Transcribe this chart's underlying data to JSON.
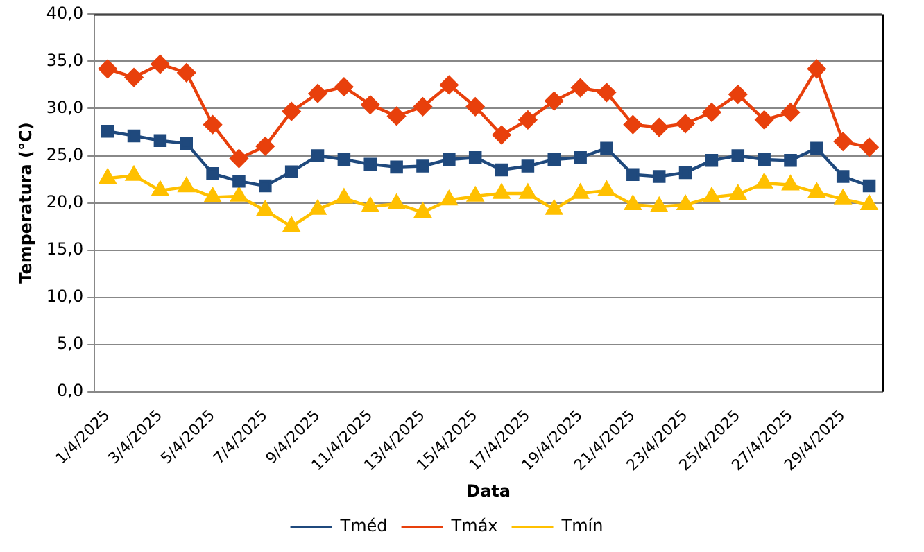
{
  "chart_data": {
    "type": "line",
    "xlabel": "Data",
    "ylabel": "Temperatura (°C)",
    "categories": [
      "1/4/2025",
      null,
      "3/4/2025",
      null,
      "5/4/2025",
      null,
      "7/4/2025",
      null,
      "9/4/2025",
      null,
      "11/4/2025",
      null,
      "13/4/2025",
      null,
      "15/4/2025",
      null,
      "17/4/2025",
      null,
      "19/4/2025",
      null,
      "21/4/2025",
      null,
      "23/4/2025",
      null,
      "25/4/2025",
      null,
      "27/4/2025",
      null,
      "29/4/2025",
      null
    ],
    "series": [
      {
        "name": "Tméd",
        "color": "#1f497d",
        "marker": "square",
        "values": [
          27.6,
          27.1,
          26.6,
          26.3,
          23.1,
          22.3,
          21.8,
          23.3,
          25.0,
          24.6,
          24.1,
          23.8,
          23.9,
          24.6,
          24.8,
          23.5,
          23.9,
          24.6,
          24.8,
          25.8,
          23.0,
          22.8,
          23.2,
          24.5,
          25.0,
          24.6,
          24.5,
          25.8,
          22.8,
          21.8
        ]
      },
      {
        "name": "Tmáx",
        "color": "#e8400c",
        "marker": "diamond",
        "values": [
          34.2,
          33.3,
          34.7,
          33.8,
          28.3,
          24.7,
          26.0,
          29.7,
          31.6,
          32.3,
          30.4,
          29.2,
          30.2,
          32.5,
          30.2,
          27.2,
          28.8,
          30.8,
          32.2,
          31.7,
          28.3,
          28.0,
          28.4,
          29.6,
          31.5,
          28.8,
          29.6,
          34.2,
          26.5,
          25.9
        ]
      },
      {
        "name": "Tmín",
        "color": "#ffc000",
        "marker": "triangle",
        "values": [
          22.6,
          22.9,
          21.3,
          21.7,
          20.6,
          20.7,
          19.2,
          17.5,
          19.3,
          20.5,
          19.6,
          19.9,
          19.0,
          20.3,
          20.7,
          21.0,
          21.0,
          19.3,
          21.0,
          21.3,
          19.8,
          19.6,
          19.8,
          20.6,
          20.9,
          22.1,
          21.9,
          21.1,
          20.4,
          19.8
        ]
      }
    ],
    "ylim": [
      0,
      40
    ],
    "yticks": [
      {
        "value": 0,
        "label": "0,0"
      },
      {
        "value": 5,
        "label": "5,0"
      },
      {
        "value": 10,
        "label": "10,0"
      },
      {
        "value": 15,
        "label": "15,0"
      },
      {
        "value": 20,
        "label": "20,0"
      },
      {
        "value": 25,
        "label": "25,0"
      },
      {
        "value": 30,
        "label": "30,0"
      },
      {
        "value": 35,
        "label": "35,0"
      },
      {
        "value": 40,
        "label": "40,0"
      }
    ],
    "grid": "y",
    "legend": "bottom",
    "line_style": "solid"
  }
}
